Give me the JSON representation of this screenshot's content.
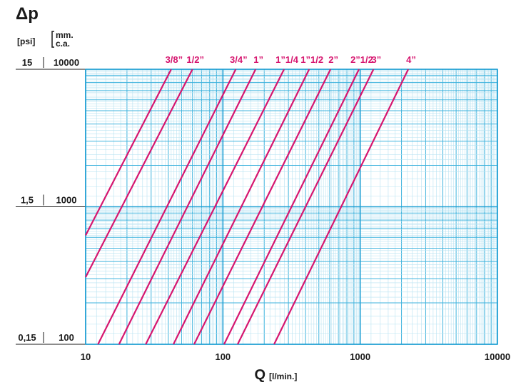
{
  "chart_data": {
    "type": "line",
    "y_label": "Δp",
    "y2_label": "[psi]",
    "y_unit_lines": [
      "mm.",
      "c.a."
    ],
    "x_label": "Q",
    "x_unit": "[l/min.]",
    "log_x": true,
    "log_y": true,
    "grid": true,
    "xlim": [
      10,
      10000
    ],
    "xticks": [
      10,
      100,
      1000,
      10000
    ],
    "ylim": [
      100,
      10000
    ],
    "yticks": [
      100,
      1000,
      10000
    ],
    "y2lim": [
      0.15,
      15
    ],
    "y2ticks": [
      {
        "value": 0.15,
        "label": "0,15"
      },
      {
        "value": 1.5,
        "label": "1,5"
      },
      15
    ],
    "series": [
      {
        "name": "3/8”",
        "color": "#d6166f",
        "x": [
          10,
          42
        ],
        "values": [
          620,
          10000
        ]
      },
      {
        "name": "1/2”",
        "color": "#d6166f",
        "x": [
          10,
          60
        ],
        "values": [
          308,
          10000
        ]
      },
      {
        "name": "3/4”",
        "color": "#d6166f",
        "x": [
          12.3,
          124
        ],
        "values": [
          100,
          10000
        ]
      },
      {
        "name": "1”",
        "color": "#d6166f",
        "x": [
          17.5,
          173
        ],
        "values": [
          100,
          10000
        ]
      },
      {
        "name": "1”1/4",
        "color": "#d6166f",
        "x": [
          27.4,
          279
        ],
        "values": [
          100,
          10000
        ]
      },
      {
        "name": "1”1/2",
        "color": "#d6166f",
        "x": [
          43.6,
          425
        ],
        "values": [
          100,
          10000
        ]
      },
      {
        "name": "2”",
        "color": "#d6166f",
        "x": [
          61.7,
          608
        ],
        "values": [
          100,
          10000
        ]
      },
      {
        "name": "2”1/2",
        "color": "#d6166f",
        "x": [
          102,
          980
        ],
        "values": [
          100,
          10000
        ]
      },
      {
        "name": "3”",
        "color": "#d6166f",
        "x": [
          128,
          1250
        ],
        "values": [
          100,
          10000
        ]
      },
      {
        "name": "4”",
        "color": "#d6166f",
        "x": [
          236,
          2240
        ],
        "values": [
          100,
          10000
        ]
      }
    ]
  }
}
